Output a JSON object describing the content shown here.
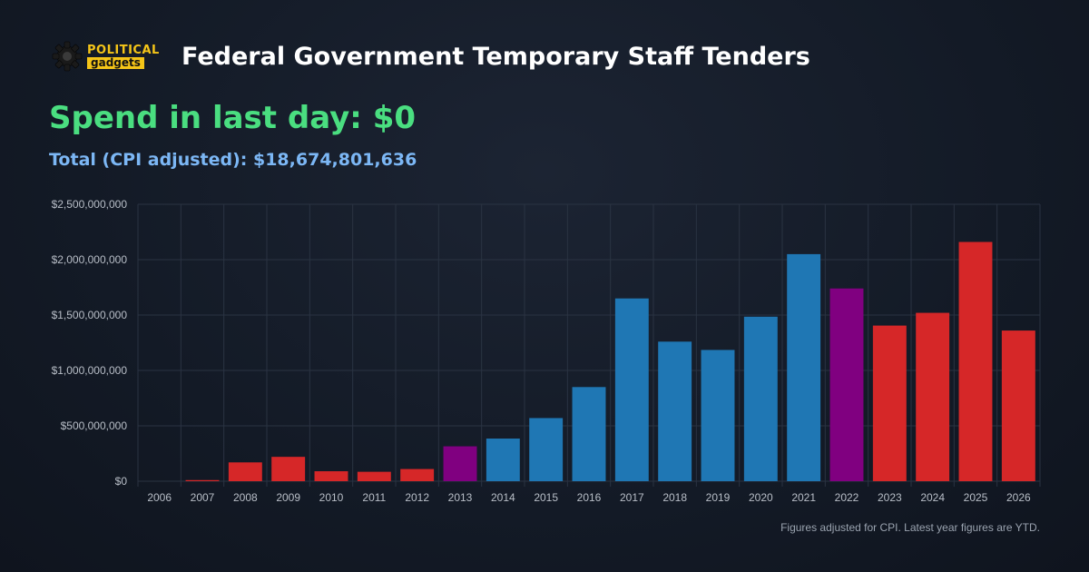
{
  "header": {
    "logo_top": "POLITICAL",
    "logo_bottom": "gadgets",
    "title": "Federal Government Temporary Staff Tenders"
  },
  "summary": {
    "spend_last_day": "Spend in last day: $0",
    "total_cpi": "Total (CPI adjusted): $18,674,801,636"
  },
  "footnote": "Figures adjusted for CPI. Latest year figures are YTD.",
  "colors": {
    "red": "#d62728",
    "blue": "#1f77b4",
    "purple": "#800080",
    "green_text": "#4ade80",
    "blue_text": "#7cb7f5",
    "grid": "#2a3342"
  },
  "chart_data": {
    "type": "bar",
    "title": "",
    "xlabel": "",
    "ylabel": "",
    "ylim": [
      0,
      2500000000
    ],
    "yticks": [
      0,
      500000000,
      1000000000,
      1500000000,
      2000000000,
      2500000000
    ],
    "ytick_labels": [
      "$0",
      "$500,000,000",
      "$1,000,000,000",
      "$1,500,000,000",
      "$2,000,000,000",
      "$2,500,000,000"
    ],
    "grid": true,
    "categories": [
      "2006",
      "2007",
      "2008",
      "2009",
      "2010",
      "2011",
      "2012",
      "2013",
      "2014",
      "2015",
      "2016",
      "2017",
      "2018",
      "2019",
      "2020",
      "2021",
      "2022",
      "2023",
      "2024",
      "2025",
      "2026"
    ],
    "values": [
      0,
      10000000,
      170000000,
      220000000,
      90000000,
      85000000,
      110000000,
      315000000,
      385000000,
      570000000,
      850000000,
      1650000000,
      1260000000,
      1185000000,
      1485000000,
      2050000000,
      1740000000,
      1405000000,
      1520000000,
      2160000000,
      1360000000
    ],
    "bar_colors": [
      "#d62728",
      "#d62728",
      "#d62728",
      "#d62728",
      "#d62728",
      "#d62728",
      "#d62728",
      "#800080",
      "#1f77b4",
      "#1f77b4",
      "#1f77b4",
      "#1f77b4",
      "#1f77b4",
      "#1f77b4",
      "#1f77b4",
      "#1f77b4",
      "#800080",
      "#d62728",
      "#d62728",
      "#d62728",
      "#d62728"
    ]
  }
}
